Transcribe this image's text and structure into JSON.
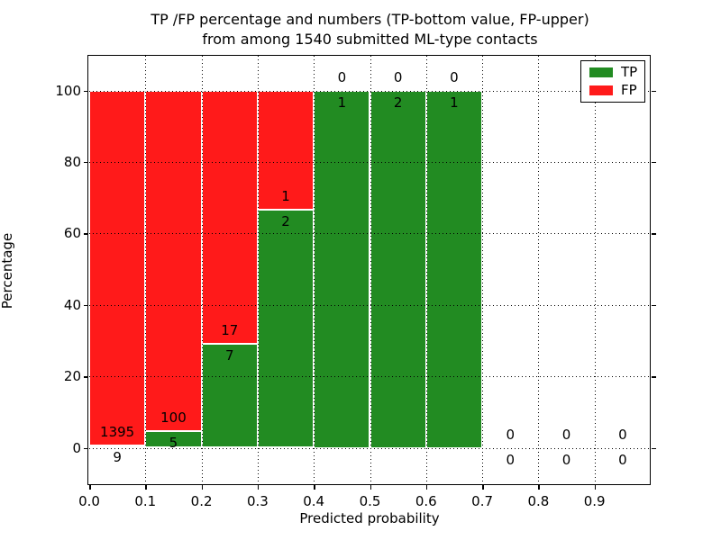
{
  "title": {
    "line1": "TP /FP percentage and numbers (TP-bottom value, FP-upper)",
    "line2": "from among 1540 submitted ML-type contacts"
  },
  "axes": {
    "ylabel": "Percentage",
    "xlabel": "Predicted probability",
    "x_tick_labels": [
      "0.0",
      "0.1",
      "0.2",
      "0.3",
      "0.4",
      "0.5",
      "0.6",
      "0.7",
      "0.8",
      "0.9"
    ],
    "y_tick_labels": [
      "0",
      "20",
      "40",
      "60",
      "80",
      "100"
    ]
  },
  "legend": {
    "items": [
      {
        "label": "TP",
        "color": "#228b22"
      },
      {
        "label": "FP",
        "color": "#ff1a1a"
      }
    ]
  },
  "colors": {
    "tp": "#228b22",
    "fp": "#ff1a1a",
    "grid": "#000000",
    "background": "#ffffff"
  },
  "chart_data": {
    "type": "bar",
    "stacked": true,
    "unit": "percent_of_bin_total",
    "title": "TP /FP percentage and numbers (TP-bottom value, FP-upper) from among 1540 submitted ML-type contacts",
    "xlabel": "Predicted probability",
    "ylabel": "Percentage",
    "xlim": [
      0.0,
      1.0
    ],
    "ylim": [
      -12,
      110
    ],
    "grid": "dotted both axes",
    "legend_position": "upper right",
    "total_contacts": 1540,
    "bin_width": 0.1,
    "categories": [
      "0.0-0.1",
      "0.1-0.2",
      "0.2-0.3",
      "0.3-0.4",
      "0.4-0.5",
      "0.5-0.6",
      "0.6-0.7",
      "0.7-0.8",
      "0.8-0.9",
      "0.9-1.0"
    ],
    "series": [
      {
        "name": "TP",
        "color": "#228b22",
        "values": [
          9,
          5,
          7,
          2,
          1,
          2,
          1,
          0,
          0,
          0
        ]
      },
      {
        "name": "FP",
        "color": "#ff1a1a",
        "values": [
          1395,
          100,
          17,
          1,
          0,
          0,
          0,
          0,
          0,
          0
        ]
      }
    ],
    "tp_percent_of_bin": [
      0.64,
      4.76,
      29.17,
      66.67,
      100,
      100,
      100,
      null,
      null,
      null
    ]
  }
}
